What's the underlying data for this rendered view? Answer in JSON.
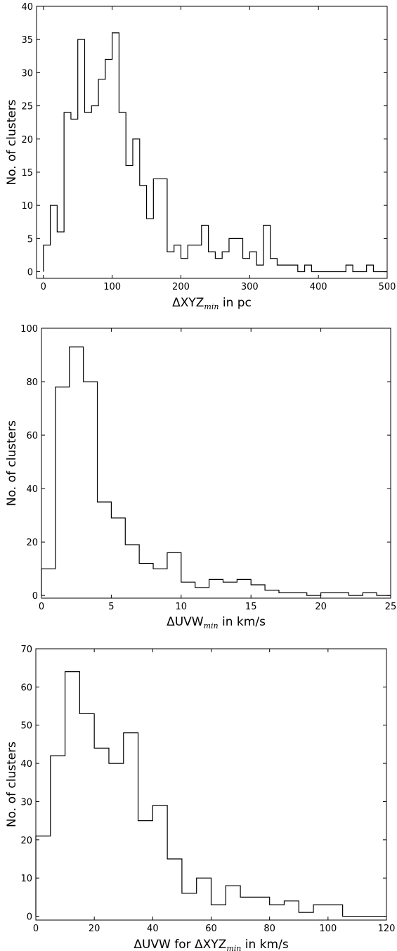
{
  "chart_data": [
    {
      "type": "histogram",
      "xlabel": "ΔXYZ",
      "xlabel_sub": "min",
      "xlabel_suffix": " in pc",
      "ylabel": "No. of clusters",
      "xlim": [
        -10,
        500
      ],
      "ylim": [
        -1,
        40
      ],
      "xticks": [
        0,
        100,
        200,
        300,
        400,
        500
      ],
      "yticks": [
        0,
        5,
        10,
        15,
        20,
        25,
        30,
        35,
        40
      ],
      "bin_edges": [
        0,
        10,
        20,
        30,
        40,
        50,
        60,
        70,
        80,
        90,
        100,
        110,
        120,
        130,
        140,
        150,
        160,
        170,
        180,
        190,
        200,
        210,
        220,
        230,
        240,
        250,
        260,
        270,
        280,
        290,
        300,
        310,
        320,
        330,
        340,
        350,
        360,
        370,
        380,
        390,
        400,
        410,
        420,
        430,
        440,
        450,
        460,
        470,
        480,
        490,
        500
      ],
      "counts": [
        4,
        10,
        6,
        24,
        23,
        35,
        24,
        25,
        29,
        32,
        36,
        24,
        16,
        20,
        13,
        8,
        14,
        14,
        3,
        4,
        2,
        4,
        4,
        7,
        3,
        2,
        3,
        5,
        5,
        2,
        3,
        1,
        7,
        2,
        1,
        1,
        1,
        0,
        1,
        0,
        0,
        0,
        0,
        0,
        1,
        0,
        0,
        1,
        0,
        0
      ],
      "grid": false
    },
    {
      "type": "histogram",
      "xlabel": "ΔUVW",
      "xlabel_sub": "min",
      "xlabel_suffix": " in km/s",
      "ylabel": "No. of clusters",
      "xlim": [
        0,
        25
      ],
      "ylim": [
        -1,
        100
      ],
      "xticks": [
        0,
        5,
        10,
        15,
        20,
        25
      ],
      "yticks": [
        0,
        20,
        40,
        60,
        80,
        100
      ],
      "bin_edges": [
        0,
        1,
        2,
        3,
        4,
        5,
        6,
        7,
        8,
        9,
        10,
        11,
        12,
        13,
        14,
        15,
        16,
        17,
        18,
        19,
        20,
        21,
        22,
        23,
        24,
        25
      ],
      "counts": [
        10,
        78,
        93,
        80,
        35,
        29,
        19,
        12,
        10,
        16,
        5,
        3,
        6,
        5,
        6,
        4,
        2,
        1,
        1,
        0,
        1,
        1,
        0,
        1,
        0
      ],
      "grid": false
    },
    {
      "type": "histogram",
      "xlabel": "ΔUVW for ΔXYZ",
      "xlabel_sub": "min",
      "xlabel_suffix": " in km/s",
      "ylabel": "No. of clusters",
      "xlim": [
        0,
        120
      ],
      "ylim": [
        -1,
        70
      ],
      "xticks": [
        0,
        20,
        40,
        60,
        80,
        100,
        120
      ],
      "yticks": [
        0,
        10,
        20,
        30,
        40,
        50,
        60,
        70
      ],
      "bin_edges": [
        0,
        5,
        10,
        15,
        20,
        25,
        30,
        35,
        40,
        45,
        50,
        55,
        60,
        65,
        70,
        75,
        80,
        85,
        90,
        95,
        100,
        105,
        110,
        115,
        120
      ],
      "counts": [
        21,
        42,
        64,
        53,
        44,
        40,
        48,
        25,
        29,
        15,
        6,
        10,
        3,
        8,
        5,
        5,
        3,
        4,
        1,
        3,
        3,
        0,
        0,
        0
      ],
      "grid": false
    }
  ]
}
